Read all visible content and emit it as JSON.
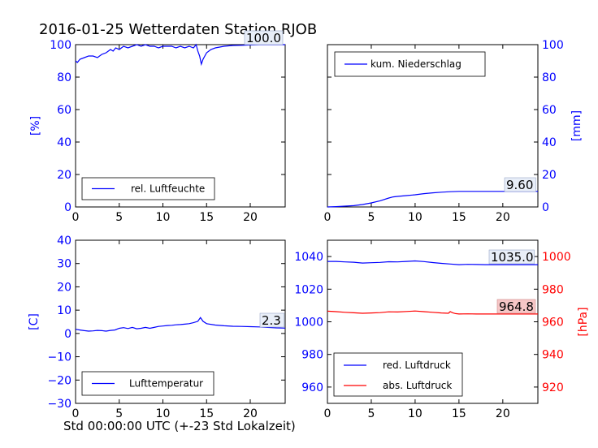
{
  "title": "2016-01-25 Wetterdaten Station RJOB",
  "x_caption": "Std 00:00:00 UTC (+-23 Std Lokalzeit)",
  "colors": {
    "blue": "#0000ff",
    "red": "#ff0000",
    "black": "#000000"
  },
  "chart_data": [
    {
      "type": "line",
      "id": "humidity",
      "ylabel": "[%]",
      "ylim": [
        0,
        100
      ],
      "yticks": [
        "0",
        "20",
        "40",
        "60",
        "80",
        "100"
      ],
      "xlim": [
        0,
        24
      ],
      "xticks": [
        "0",
        "5",
        "10",
        "15",
        "20"
      ],
      "legend": "bottom-center",
      "end_label": "100.0",
      "series": [
        {
          "name": "rel. Luftfeuchte",
          "color": "#0000ff",
          "x": [
            0,
            0.2,
            0.5,
            1,
            1.5,
            2,
            2.5,
            3,
            3.5,
            4,
            4.3,
            4.6,
            5,
            5.5,
            6,
            6.5,
            7,
            7.5,
            8,
            8.5,
            9,
            9.5,
            10,
            10.5,
            11,
            11.5,
            12,
            12.5,
            13,
            13.5,
            13.8,
            14,
            14.2,
            14.4,
            14.6,
            15,
            15.5,
            16,
            17,
            18,
            19,
            20,
            21,
            22,
            23,
            24
          ],
          "y": [
            90,
            89,
            91,
            92,
            93,
            93,
            92,
            94,
            95,
            97,
            96,
            98,
            97,
            99,
            98,
            99,
            100,
            99,
            100,
            99,
            99,
            98,
            99,
            99,
            99,
            98,
            99,
            98,
            99,
            98,
            100,
            96,
            93,
            88,
            91,
            95,
            97,
            98,
            99,
            99.5,
            99.6,
            99.8,
            100,
            100,
            100,
            100
          ]
        }
      ]
    },
    {
      "type": "line",
      "id": "precipitation",
      "ylabel": "[mm]",
      "ylim": [
        0,
        100
      ],
      "yticks": [
        "0",
        "20",
        "40",
        "60",
        "80",
        "100"
      ],
      "xlim": [
        0,
        24
      ],
      "xticks": [
        "0",
        "5",
        "10",
        "15",
        "20"
      ],
      "legend": "top-left",
      "end_label": "9.60",
      "series": [
        {
          "name": "kum. Niederschlag",
          "color": "#0000ff",
          "x": [
            0,
            1,
            2,
            3,
            4,
            5,
            6,
            7,
            7.5,
            8,
            9,
            10,
            11,
            12,
            13,
            14,
            15,
            16,
            17,
            18,
            19,
            20,
            21,
            22,
            23,
            24
          ],
          "y": [
            0,
            0.2,
            0.5,
            0.8,
            1.5,
            2.5,
            3.8,
            5.5,
            6.2,
            6.5,
            7,
            7.5,
            8.2,
            8.7,
            9.1,
            9.4,
            9.6,
            9.6,
            9.6,
            9.6,
            9.6,
            9.6,
            9.6,
            9.6,
            9.6,
            9.6
          ]
        }
      ]
    },
    {
      "type": "line",
      "id": "temperature",
      "ylabel": "[C]",
      "ylim": [
        -30,
        40
      ],
      "yticks": [
        "−30",
        "−20",
        "−10",
        "0",
        "10",
        "20",
        "30",
        "40"
      ],
      "xlim": [
        0,
        24
      ],
      "xticks": [
        "0",
        "5",
        "10",
        "15",
        "20"
      ],
      "legend": "bottom-center",
      "end_label": "2.3",
      "series": [
        {
          "name": "Lufttemperatur",
          "color": "#0000ff",
          "x": [
            0,
            0.5,
            1,
            1.5,
            2,
            2.5,
            3,
            3.5,
            4,
            4.5,
            5,
            5.5,
            6,
            6.5,
            7,
            7.5,
            8,
            8.5,
            9,
            9.5,
            10,
            10.5,
            11,
            11.5,
            12,
            12.5,
            13,
            13.5,
            14,
            14.3,
            14.6,
            15,
            16,
            17,
            18,
            19,
            20,
            21,
            22,
            23,
            24
          ],
          "y": [
            1.8,
            1.5,
            1.2,
            1,
            1.1,
            1.3,
            1.2,
            1,
            1.3,
            1.5,
            2.2,
            2.5,
            2.1,
            2.6,
            2,
            2.2,
            2.6,
            2.2,
            2.6,
            3,
            3.2,
            3.4,
            3.5,
            3.7,
            3.8,
            4,
            4.2,
            4.6,
            5.2,
            6.8,
            5.2,
            4.2,
            3.6,
            3.3,
            3.1,
            3,
            2.9,
            2.8,
            2.6,
            2.4,
            2.3
          ]
        }
      ]
    },
    {
      "type": "line",
      "id": "pressure",
      "ylabel_right": "[hPa]",
      "ylim": [
        950,
        1050
      ],
      "yticks": [
        "960",
        "980",
        "1000",
        "1020",
        "1040"
      ],
      "ylim_right": [
        910,
        1010
      ],
      "yticks_right": [
        "920",
        "940",
        "960",
        "980",
        "1000"
      ],
      "xlim": [
        0,
        24
      ],
      "xticks": [
        "0",
        "5",
        "10",
        "15",
        "20"
      ],
      "legend": "bottom-left",
      "end_labels": [
        "1035.0",
        "964.8"
      ],
      "series": [
        {
          "name": "red. Luftdruck",
          "color": "#0000ff",
          "axis": "left",
          "x": [
            0,
            1,
            2,
            3,
            4,
            5,
            6,
            7,
            8,
            9,
            10,
            11,
            12,
            13,
            14,
            15,
            16,
            17,
            18,
            19,
            20,
            21,
            22,
            23,
            24
          ],
          "y": [
            1037,
            1037,
            1036.7,
            1036.5,
            1036,
            1036.2,
            1036.4,
            1036.8,
            1036.7,
            1037,
            1037.3,
            1036.9,
            1036.3,
            1035.8,
            1035.4,
            1035,
            1035.2,
            1035.1,
            1035,
            1035,
            1035,
            1035,
            1035,
            1035,
            1035
          ]
        },
        {
          "name": "abs. Luftdruck",
          "color": "#ff0000",
          "axis": "right",
          "x": [
            0,
            1,
            2,
            3,
            4,
            5,
            6,
            7,
            8,
            9,
            10,
            11,
            12,
            13,
            13.8,
            14,
            14.3,
            14.6,
            15,
            16,
            17,
            18,
            19,
            20,
            21,
            22,
            23,
            24
          ],
          "y": [
            966.5,
            966.2,
            965.8,
            965.5,
            965.2,
            965.4,
            965.6,
            966.1,
            966,
            966.3,
            966.6,
            966.2,
            965.8,
            965.4,
            965.2,
            966.2,
            965.5,
            965,
            964.8,
            964.9,
            964.8,
            964.8,
            964.8,
            964.8,
            964.8,
            964.8,
            964.8,
            964.8
          ]
        }
      ]
    }
  ]
}
